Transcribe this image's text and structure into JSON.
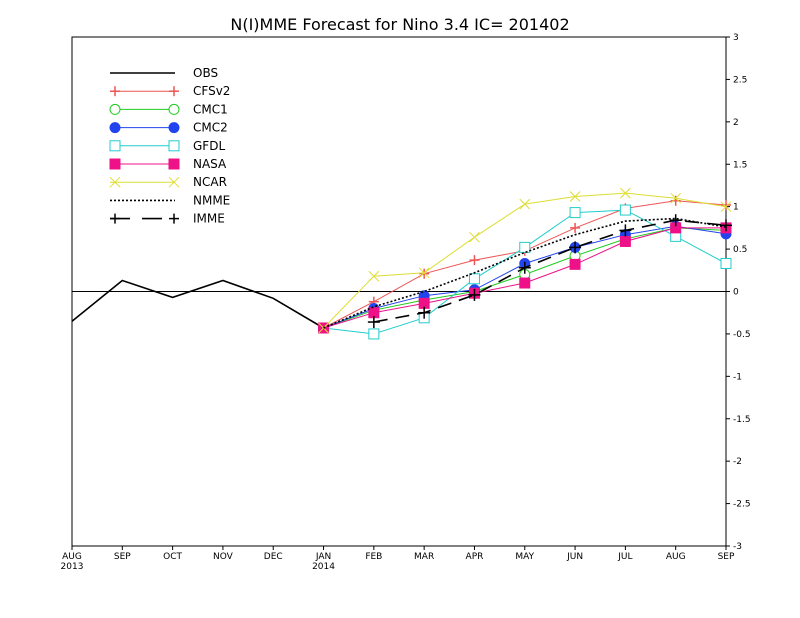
{
  "chart_data": {
    "type": "line",
    "title": "N(I)MME Forecast for Nino 3.4  IC= 201402",
    "x_ticks": [
      "AUG",
      "SEP",
      "OCT",
      "NOV",
      "DEC",
      "JAN",
      "FEB",
      "MAR",
      "APR",
      "MAY",
      "JUN",
      "JUL",
      "AUG",
      "SEP"
    ],
    "x_year_labels": [
      {
        "index": 0,
        "label": "2013"
      },
      {
        "index": 5,
        "label": "2014"
      }
    ],
    "y_ticks": [
      "3",
      "2.5",
      "2",
      "1.5",
      "1",
      "0.5",
      "0",
      "-0.5",
      "-1",
      "-1.5",
      "-2",
      "-2.5",
      "-3"
    ],
    "ylim": [
      -3,
      3
    ],
    "zero_line": true,
    "legend_position": "top-left",
    "series": [
      {
        "name": "OBS",
        "color": "#000000",
        "marker": "none",
        "dash": "solid",
        "start": 0,
        "values": [
          -0.35,
          0.13,
          -0.07,
          0.13,
          -0.08,
          -0.43
        ]
      },
      {
        "name": "CFSv2",
        "color": "#ee5555",
        "marker": "plus",
        "dash": "solid",
        "start": 5,
        "values": [
          -0.43,
          -0.12,
          0.21,
          0.37,
          0.48,
          0.75,
          0.98,
          1.07,
          1.02
        ]
      },
      {
        "name": "CMC1",
        "color": "#22cc22",
        "marker": "circle",
        "dash": "solid",
        "start": 5,
        "values": [
          -0.43,
          -0.22,
          -0.1,
          0.0,
          0.2,
          0.42,
          0.62,
          0.75,
          0.72
        ]
      },
      {
        "name": "CMC2",
        "color": "#2244ee",
        "marker": "dot",
        "dash": "solid",
        "start": 5,
        "values": [
          -0.43,
          -0.2,
          -0.05,
          0.02,
          0.33,
          0.52,
          0.67,
          0.77,
          0.68
        ]
      },
      {
        "name": "GFDL",
        "color": "#22cccc",
        "marker": "square",
        "dash": "solid",
        "start": 5,
        "values": [
          -0.43,
          -0.5,
          -0.31,
          0.15,
          0.52,
          0.93,
          0.96,
          0.65,
          0.33
        ]
      },
      {
        "name": "NASA",
        "color": "#ee1188",
        "marker": "filled-square",
        "dash": "solid",
        "start": 5,
        "values": [
          -0.43,
          -0.25,
          -0.14,
          -0.02,
          0.1,
          0.32,
          0.59,
          0.75,
          0.75
        ]
      },
      {
        "name": "NCAR",
        "color": "#dddd33",
        "marker": "x",
        "dash": "solid",
        "start": 5,
        "values": [
          -0.43,
          0.18,
          0.22,
          0.64,
          1.03,
          1.12,
          1.16,
          1.1,
          1.0
        ]
      },
      {
        "name": "NMME",
        "color": "#000000",
        "marker": "none",
        "dash": "dotted",
        "start": 5,
        "values": [
          -0.43,
          -0.18,
          0.0,
          0.22,
          0.46,
          0.67,
          0.83,
          0.86,
          0.76
        ]
      },
      {
        "name": "IMME",
        "color": "#000000",
        "marker": "plus",
        "dash": "dashed",
        "start": 6,
        "values": [
          -0.36,
          -0.25,
          -0.04,
          0.28,
          0.52,
          0.72,
          0.84,
          0.78
        ]
      }
    ]
  }
}
